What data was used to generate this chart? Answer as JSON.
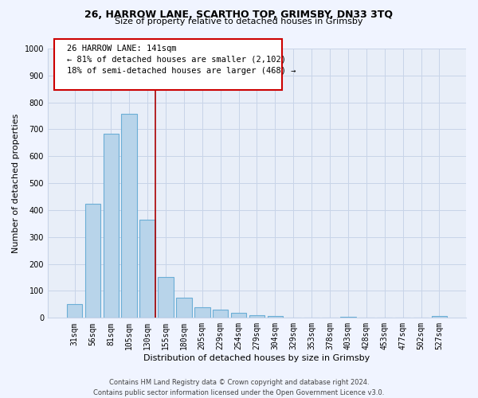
{
  "title1": "26, HARROW LANE, SCARTHO TOP, GRIMSBY, DN33 3TQ",
  "title2": "Size of property relative to detached houses in Grimsby",
  "xlabel": "Distribution of detached houses by size in Grimsby",
  "ylabel": "Number of detached properties",
  "bar_labels": [
    "31sqm",
    "56sqm",
    "81sqm",
    "105sqm",
    "130sqm",
    "155sqm",
    "180sqm",
    "205sqm",
    "229sqm",
    "254sqm",
    "279sqm",
    "304sqm",
    "329sqm",
    "353sqm",
    "378sqm",
    "403sqm",
    "428sqm",
    "453sqm",
    "477sqm",
    "502sqm",
    "527sqm"
  ],
  "bar_values": [
    52,
    425,
    685,
    757,
    365,
    152,
    75,
    40,
    32,
    18,
    10,
    8,
    0,
    0,
    0,
    5,
    0,
    0,
    0,
    0,
    8
  ],
  "bar_color": "#b8d4ea",
  "bar_edge_color": "#6baed6",
  "vline_x_idx": 4,
  "vline_color": "#aa0000",
  "ann_line1": "26 HARROW LANE: 141sqm",
  "ann_line2": "← 81% of detached houses are smaller (2,102)",
  "ann_line3": "18% of semi-detached houses are larger (468) →",
  "ylim": [
    0,
    1000
  ],
  "yticks": [
    0,
    100,
    200,
    300,
    400,
    500,
    600,
    700,
    800,
    900,
    1000
  ],
  "background_color": "#f0f4ff",
  "plot_bg_color": "#e8eef8",
  "grid_color": "#c8d4e8",
  "footer1": "Contains HM Land Registry data © Crown copyright and database right 2024.",
  "footer2": "Contains public sector information licensed under the Open Government Licence v3.0.",
  "title_fontsize": 9,
  "subtitle_fontsize": 8,
  "axis_label_fontsize": 8,
  "tick_fontsize": 7,
  "annotation_fontsize": 7.5,
  "footer_fontsize": 6
}
